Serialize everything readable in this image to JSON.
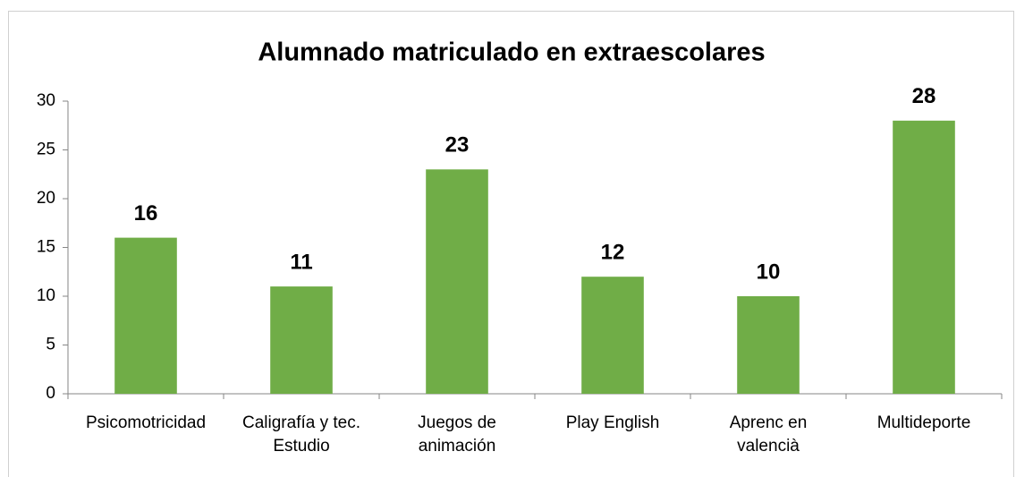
{
  "chart_data": {
    "type": "bar",
    "title": "Alumnado matriculado en extraescolares",
    "categories": [
      "Psicomotricidad",
      "Caligrafía y tec. Estudio",
      "Juegos de animación",
      "Play English",
      "Aprenc en valencià",
      "Multideporte"
    ],
    "values": [
      16,
      11,
      23,
      12,
      10,
      28
    ],
    "color": "#70ad47",
    "ylim": [
      0,
      30
    ],
    "yticks": [
      0,
      5,
      10,
      15,
      20,
      25,
      30
    ],
    "grid": false
  }
}
